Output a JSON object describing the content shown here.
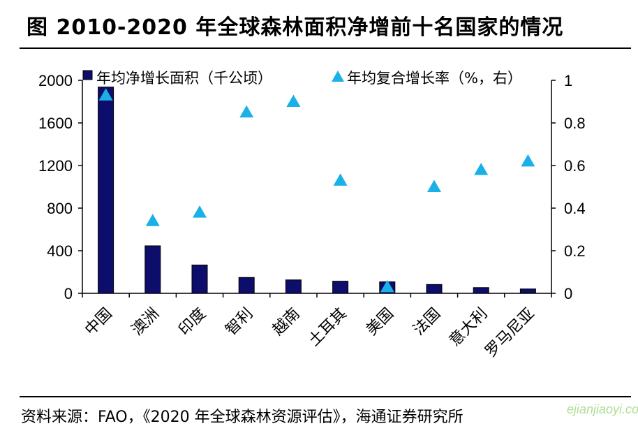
{
  "figure": {
    "title": "图 2010-2020 年全球森林面积净增前十名国家的情况",
    "source": "资料来源：FAO，《2020 年全球森林资源评估》，海通证券研究所",
    "watermark": "ejianjiaoyi.com"
  },
  "colors": {
    "bar": "#0d0d6b",
    "marker": "#1ab0e8",
    "axis": "#000000"
  },
  "chart_data": {
    "type": "bar",
    "categories": [
      "中国",
      "澳洲",
      "印度",
      "智利",
      "越南",
      "土耳其",
      "美国",
      "法国",
      "意大利",
      "罗马尼亚"
    ],
    "series": [
      {
        "name": "年均净增长面积（千公顷）",
        "type": "bar",
        "axis": "left",
        "values": [
          1937,
          446,
          266,
          149,
          126,
          114,
          108,
          83,
          54,
          41
        ]
      },
      {
        "name": "年均复合增长率（%，右）",
        "type": "scatter",
        "marker": "triangle",
        "axis": "right",
        "values": [
          0.93,
          0.34,
          0.38,
          0.85,
          0.9,
          0.53,
          0.03,
          0.5,
          0.58,
          0.62
        ]
      }
    ],
    "ylim_left": [
      0,
      2000
    ],
    "ylim_right": [
      0,
      1
    ],
    "yticks_left": [
      "0",
      "400",
      "800",
      "1200",
      "1600",
      "2000"
    ],
    "yticks_right": [
      "0",
      "0.2",
      "0.4",
      "0.6",
      "0.8",
      "1"
    ],
    "grid": false,
    "legend": "top"
  }
}
